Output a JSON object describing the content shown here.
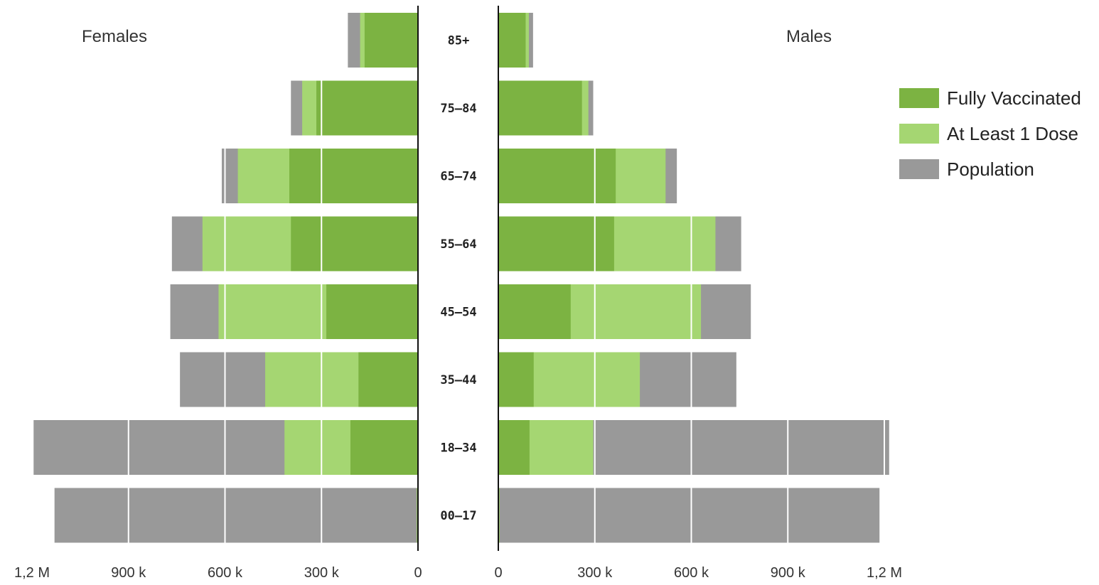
{
  "chart_data": {
    "type": "bar",
    "subtype": "population-pyramid",
    "panels": {
      "left": {
        "title": "Females"
      },
      "right": {
        "title": "Males"
      }
    },
    "categories": [
      "85+",
      "75–84",
      "65–74",
      "55–64",
      "45–54",
      "35–44",
      "18–34",
      "00–17"
    ],
    "series": [
      {
        "name": "Fully Vaccinated",
        "color": "#7cb342",
        "females": [
          166000,
          316000,
          400000,
          395000,
          285000,
          185000,
          210000,
          3000
        ],
        "males": [
          85000,
          260000,
          365000,
          360000,
          225000,
          110000,
          97000,
          3000
        ]
      },
      {
        "name": "At Least 1 Dose",
        "color": "#a5d672",
        "females": [
          180000,
          360000,
          560000,
          670000,
          620000,
          475000,
          415000,
          4000
        ],
        "males": [
          95000,
          280000,
          520000,
          675000,
          630000,
          440000,
          295000,
          4000
        ]
      },
      {
        "name": "Population",
        "color": "#999999",
        "females": [
          218000,
          395000,
          610000,
          765000,
          770000,
          740000,
          1195000,
          1130000
        ],
        "males": [
          108000,
          295000,
          555000,
          755000,
          785000,
          740000,
          1215000,
          1185000
        ]
      }
    ],
    "x_ticks": [
      {
        "value": 0,
        "label": "0"
      },
      {
        "value": 300000,
        "label": "300 k"
      },
      {
        "value": 600000,
        "label": "600 k"
      },
      {
        "value": 900000,
        "label": "900 k"
      },
      {
        "value": 1200000,
        "label": "1,2 M"
      }
    ],
    "xlim": [
      0,
      1200000
    ],
    "legend": {
      "position": "right"
    },
    "grid": true
  }
}
